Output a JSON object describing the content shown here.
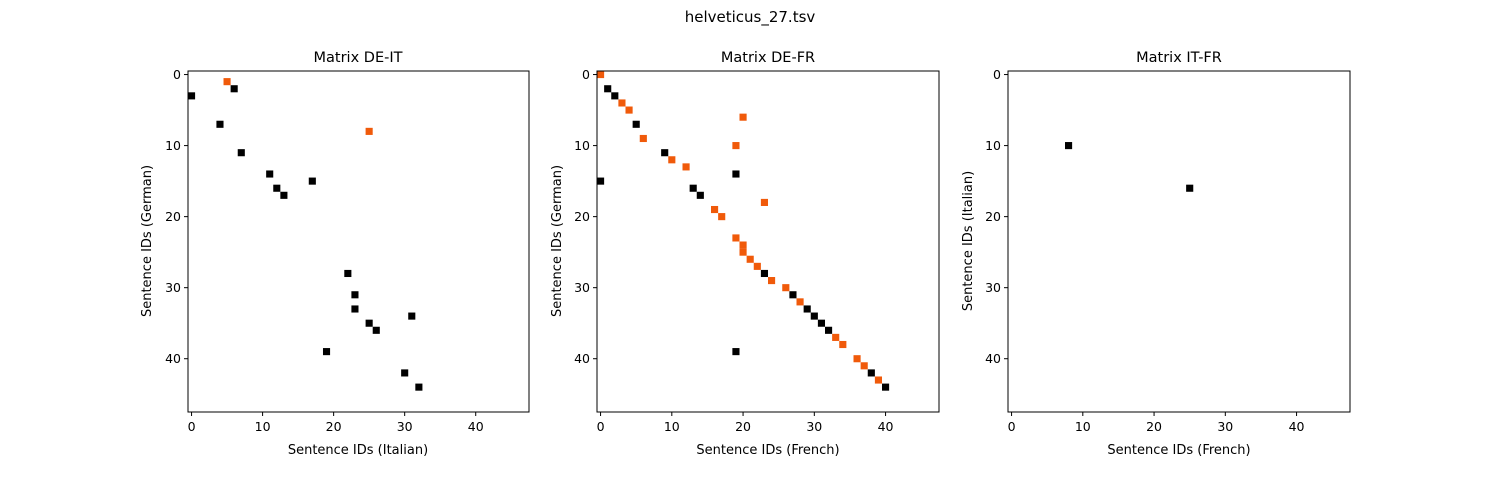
{
  "figure": {
    "suptitle": "helveticus_27.tsv"
  },
  "colors": {
    "black": "#000000",
    "orange": "#f05a0a"
  },
  "chart_data": [
    {
      "type": "heatmap",
      "title": "Matrix DE-IT",
      "xlabel": "Sentence IDs (Italian)",
      "ylabel": "Sentence IDs (German)",
      "xlim": [
        -0.5,
        47.5
      ],
      "ylim": [
        47.5,
        -0.5
      ],
      "xticks": [
        0,
        10,
        20,
        30,
        40
      ],
      "yticks": [
        0,
        10,
        20,
        30,
        40
      ],
      "grid": false,
      "points": [
        {
          "x": 5,
          "y": 1,
          "color": "orange"
        },
        {
          "x": 25,
          "y": 8,
          "color": "orange"
        },
        {
          "x": 0,
          "y": 3,
          "color": "black"
        },
        {
          "x": 6,
          "y": 2,
          "color": "black"
        },
        {
          "x": 4,
          "y": 7,
          "color": "black"
        },
        {
          "x": 7,
          "y": 11,
          "color": "black"
        },
        {
          "x": 11,
          "y": 14,
          "color": "black"
        },
        {
          "x": 12,
          "y": 16,
          "color": "black"
        },
        {
          "x": 13,
          "y": 17,
          "color": "black"
        },
        {
          "x": 17,
          "y": 15,
          "color": "black"
        },
        {
          "x": 22,
          "y": 28,
          "color": "black"
        },
        {
          "x": 23,
          "y": 31,
          "color": "black"
        },
        {
          "x": 23,
          "y": 33,
          "color": "black"
        },
        {
          "x": 25,
          "y": 35,
          "color": "black"
        },
        {
          "x": 26,
          "y": 36,
          "color": "black"
        },
        {
          "x": 31,
          "y": 34,
          "color": "black"
        },
        {
          "x": 19,
          "y": 39,
          "color": "black"
        },
        {
          "x": 30,
          "y": 42,
          "color": "black"
        },
        {
          "x": 32,
          "y": 44,
          "color": "black"
        }
      ]
    },
    {
      "type": "heatmap",
      "title": "Matrix DE-FR",
      "xlabel": "Sentence IDs (French)",
      "ylabel": "Sentence IDs (German)",
      "xlim": [
        -0.5,
        47.5
      ],
      "ylim": [
        47.5,
        -0.5
      ],
      "xticks": [
        0,
        10,
        20,
        30,
        40
      ],
      "yticks": [
        0,
        10,
        20,
        30,
        40
      ],
      "grid": false,
      "points": [
        {
          "x": 0,
          "y": 0,
          "color": "orange"
        },
        {
          "x": 3,
          "y": 4,
          "color": "orange"
        },
        {
          "x": 4,
          "y": 5,
          "color": "orange"
        },
        {
          "x": 6,
          "y": 9,
          "color": "orange"
        },
        {
          "x": 10,
          "y": 12,
          "color": "orange"
        },
        {
          "x": 12,
          "y": 13,
          "color": "orange"
        },
        {
          "x": 20,
          "y": 6,
          "color": "orange"
        },
        {
          "x": 19,
          "y": 10,
          "color": "orange"
        },
        {
          "x": 23,
          "y": 18,
          "color": "orange"
        },
        {
          "x": 16,
          "y": 19,
          "color": "orange"
        },
        {
          "x": 17,
          "y": 20,
          "color": "orange"
        },
        {
          "x": 19,
          "y": 23,
          "color": "orange"
        },
        {
          "x": 20,
          "y": 24,
          "color": "orange"
        },
        {
          "x": 20,
          "y": 25,
          "color": "orange"
        },
        {
          "x": 21,
          "y": 26,
          "color": "orange"
        },
        {
          "x": 22,
          "y": 27,
          "color": "orange"
        },
        {
          "x": 24,
          "y": 29,
          "color": "orange"
        },
        {
          "x": 26,
          "y": 30,
          "color": "orange"
        },
        {
          "x": 28,
          "y": 32,
          "color": "orange"
        },
        {
          "x": 33,
          "y": 37,
          "color": "orange"
        },
        {
          "x": 34,
          "y": 38,
          "color": "orange"
        },
        {
          "x": 36,
          "y": 40,
          "color": "orange"
        },
        {
          "x": 37,
          "y": 41,
          "color": "orange"
        },
        {
          "x": 39,
          "y": 43,
          "color": "orange"
        },
        {
          "x": 1,
          "y": 2,
          "color": "black"
        },
        {
          "x": 2,
          "y": 3,
          "color": "black"
        },
        {
          "x": 5,
          "y": 7,
          "color": "black"
        },
        {
          "x": 9,
          "y": 11,
          "color": "black"
        },
        {
          "x": 0,
          "y": 15,
          "color": "black"
        },
        {
          "x": 13,
          "y": 16,
          "color": "black"
        },
        {
          "x": 14,
          "y": 17,
          "color": "black"
        },
        {
          "x": 19,
          "y": 14,
          "color": "black"
        },
        {
          "x": 23,
          "y": 28,
          "color": "black"
        },
        {
          "x": 27,
          "y": 31,
          "color": "black"
        },
        {
          "x": 29,
          "y": 33,
          "color": "black"
        },
        {
          "x": 30,
          "y": 34,
          "color": "black"
        },
        {
          "x": 31,
          "y": 35,
          "color": "black"
        },
        {
          "x": 32,
          "y": 36,
          "color": "black"
        },
        {
          "x": 19,
          "y": 39,
          "color": "black"
        },
        {
          "x": 38,
          "y": 42,
          "color": "black"
        },
        {
          "x": 40,
          "y": 44,
          "color": "black"
        }
      ]
    },
    {
      "type": "heatmap",
      "title": "Matrix IT-FR",
      "xlabel": "Sentence IDs (French)",
      "ylabel": "Sentence IDs (Italian)",
      "xlim": [
        -0.5,
        47.5
      ],
      "ylim": [
        47.5,
        -0.5
      ],
      "xticks": [
        0,
        10,
        20,
        30,
        40
      ],
      "yticks": [
        0,
        10,
        20,
        30,
        40
      ],
      "grid": false,
      "points": [
        {
          "x": 8,
          "y": 10,
          "color": "black"
        },
        {
          "x": 25,
          "y": 16,
          "color": "black"
        }
      ]
    }
  ]
}
